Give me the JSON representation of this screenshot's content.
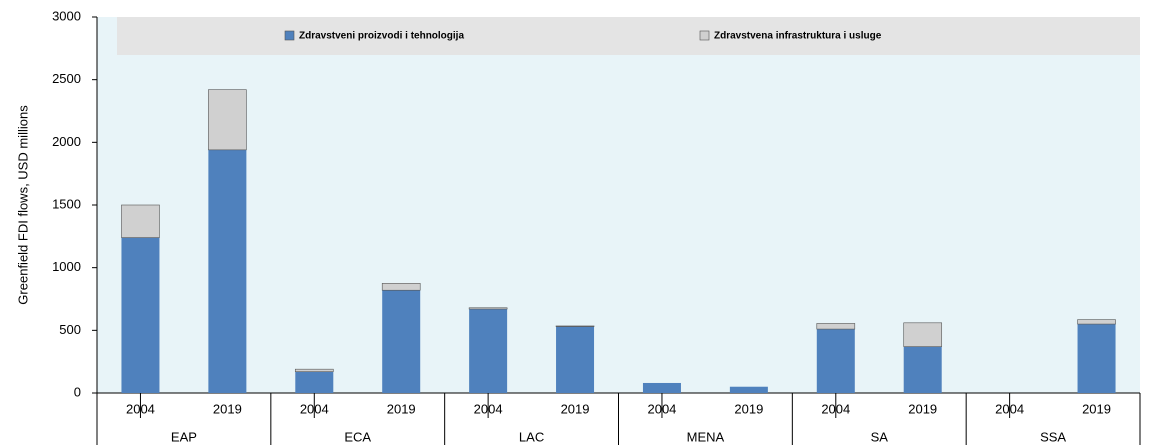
{
  "chart_data": {
    "type": "stacked_bar",
    "y_label": "Greenfield FDI flows, USD millions",
    "categories": [
      "2004",
      "2019",
      "2004",
      "2019",
      "2004",
      "2019",
      "2004",
      "2019",
      "2004",
      "2019",
      "2004",
      "2019"
    ],
    "groups": [
      "EAP",
      "ECA",
      "LAC",
      "MENA",
      "SA",
      "SSA"
    ],
    "series": [
      {
        "name": "Zdravstveni proizvodi i tehnologija",
        "color": "#4f81bd",
        "values": [
          1240,
          1940,
          170,
          820,
          670,
          530,
          80,
          50,
          510,
          370,
          0,
          550
        ]
      },
      {
        "name": "Zdravstvena  infrastruktura i usluge",
        "color": "#d0d0d0",
        "values": [
          260,
          480,
          20,
          55,
          10,
          5,
          0,
          0,
          45,
          190,
          0,
          35
        ]
      }
    ],
    "ylim": [
      0,
      3000
    ],
    "yticks": [
      0,
      500,
      1000,
      1500,
      2000,
      2500,
      3000
    ],
    "grid": false
  }
}
